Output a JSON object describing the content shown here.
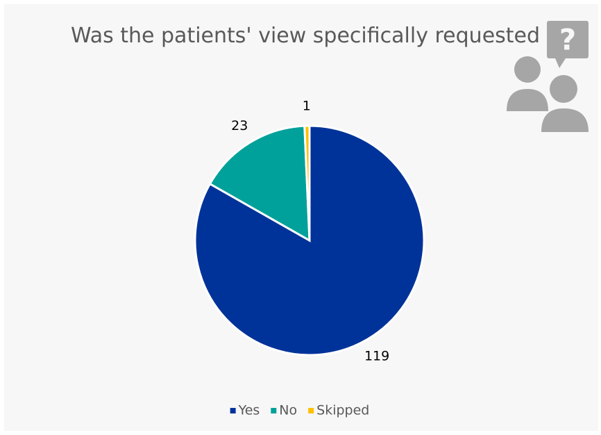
{
  "chart_data": {
    "type": "pie",
    "title": "Was the patients' view specifically requested",
    "categories": [
      "Yes",
      "No",
      "Skipped"
    ],
    "values": [
      119,
      23,
      1
    ],
    "colors": [
      "#003399",
      "#00a19a",
      "#ffc000"
    ],
    "legend": "bottom"
  }
}
